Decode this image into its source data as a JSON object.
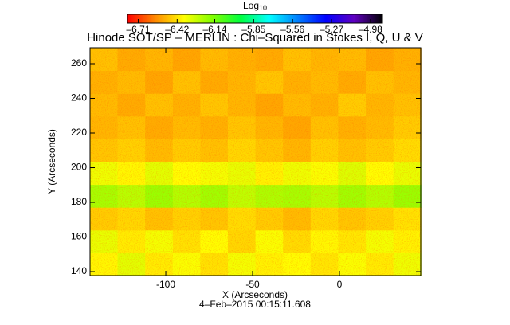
{
  "chart_data": {
    "type": "heatmap",
    "title": "Hinode SOT/SP – MERLIN : Chi–Squared in Stokes I, Q, U & V",
    "xlabel": "X (Arcseconds)",
    "ylabel": "Y (Arcseconds)",
    "annotation": "4–Feb–2015 00:15:11.608",
    "xlim": [
      -143.6,
      46.8
    ],
    "ylim": [
      137.7,
      269.2
    ],
    "xticks": [
      -100,
      -50,
      0
    ],
    "yticks": [
      140,
      160,
      180,
      200,
      220,
      240,
      260
    ],
    "x": [
      -135.7,
      -119.8,
      -103.9,
      -88.0,
      -72.2,
      -56.3,
      -40.4,
      -24.5,
      -8.7,
      7.2,
      23.1,
      39.0
    ],
    "y": [
      144.3,
      157.4,
      170.6,
      183.7,
      196.9,
      210.0,
      223.2,
      236.3,
      249.5,
      262.6
    ],
    "z": [
      [
        -6.38,
        -6.32,
        -6.4,
        -6.36,
        -6.42,
        -6.35,
        -6.39,
        -6.37,
        -6.41,
        -6.36,
        -6.4,
        -6.34
      ],
      [
        -6.33,
        -6.4,
        -6.35,
        -6.42,
        -6.37,
        -6.44,
        -6.36,
        -6.43,
        -6.38,
        -6.41,
        -6.35,
        -6.39
      ],
      [
        -6.46,
        -6.44,
        -6.48,
        -6.45,
        -6.47,
        -6.43,
        -6.46,
        -6.49,
        -6.44,
        -6.47,
        -6.45,
        -6.42
      ],
      [
        -6.22,
        -6.25,
        -6.2,
        -6.24,
        -6.21,
        -6.26,
        -6.23,
        -6.22,
        -6.25,
        -6.21,
        -6.24,
        -6.2
      ],
      [
        -6.34,
        -6.38,
        -6.32,
        -6.37,
        -6.35,
        -6.33,
        -6.39,
        -6.34,
        -6.36,
        -6.31,
        -6.37,
        -6.33
      ],
      [
        -6.47,
        -6.45,
        -6.49,
        -6.46,
        -6.48,
        -6.44,
        -6.47,
        -6.5,
        -6.45,
        -6.48,
        -6.46,
        -6.43
      ],
      [
        -6.5,
        -6.48,
        -6.52,
        -6.49,
        -6.51,
        -6.47,
        -6.5,
        -6.53,
        -6.48,
        -6.51,
        -6.49,
        -6.46
      ],
      [
        -6.49,
        -6.52,
        -6.48,
        -6.51,
        -6.47,
        -6.5,
        -6.53,
        -6.49,
        -6.51,
        -6.46,
        -6.5,
        -6.48
      ],
      [
        -6.51,
        -6.49,
        -6.53,
        -6.48,
        -6.52,
        -6.5,
        -6.47,
        -6.51,
        -6.49,
        -6.52,
        -6.48,
        -6.5
      ],
      [
        -6.48,
        -6.52,
        -6.5,
        -6.53,
        -6.49,
        -6.51,
        -6.52,
        -6.48,
        -6.5,
        -6.49,
        -6.53,
        -6.51
      ]
    ],
    "colorbar": {
      "label": "Log",
      "label_subscript": "10",
      "zlim": [
        -6.79,
        -4.89
      ],
      "ticks": [
        {
          "value": -6.71,
          "label": "–6.71"
        },
        {
          "value": -6.42,
          "label": "–6.42"
        },
        {
          "value": -6.14,
          "label": "–6.14"
        },
        {
          "value": -5.85,
          "label": "–5.85"
        },
        {
          "value": -5.56,
          "label": "–5.56"
        },
        {
          "value": -5.27,
          "label": "–5.27"
        },
        {
          "value": -4.98,
          "label": "–4.98"
        }
      ],
      "colormap": [
        "#ff0000",
        "#ff8c00",
        "#ffff00",
        "#80ff00",
        "#00ff40",
        "#00ffff",
        "#0080ff",
        "#0000ff",
        "#6000c0",
        "#000000"
      ]
    }
  }
}
